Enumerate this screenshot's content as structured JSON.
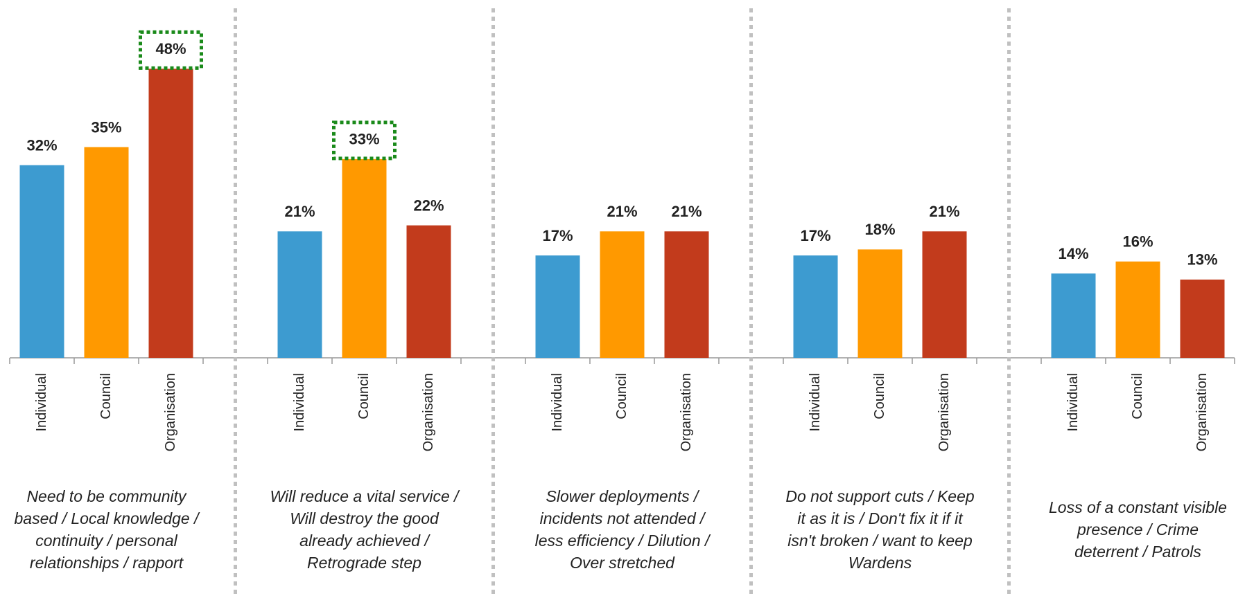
{
  "chart_data": {
    "type": "bar",
    "ylim": [
      0,
      50
    ],
    "colors": [
      "#3d9bd0",
      "#ff9900",
      "#c23b1c"
    ],
    "highlight_color": "#1a8a1a",
    "groups": [
      {
        "label": [
          "Need to be community",
          "based / Local knowledge /",
          "continuity / personal",
          "relationships / rapport"
        ],
        "categories": [
          "Individual",
          "Council",
          "Organisation"
        ],
        "values": [
          32,
          35,
          48
        ],
        "value_labels": [
          "32%",
          "35%",
          "48%"
        ],
        "highlight": 2
      },
      {
        "label": [
          "Will reduce a vital service /",
          "Will destroy the good",
          "already achieved /",
          "Retrograde step"
        ],
        "categories": [
          "Individual",
          "Council",
          "Organisation"
        ],
        "values": [
          21,
          33,
          22
        ],
        "value_labels": [
          "21%",
          "33%",
          "22%"
        ],
        "highlight": 1
      },
      {
        "label": [
          "Slower deployments /",
          "incidents not attended /",
          "less efficiency / Dilution /",
          "Over stretched"
        ],
        "categories": [
          "Individual",
          "Council",
          "Organisation"
        ],
        "values": [
          17,
          21,
          21
        ],
        "value_labels": [
          "17%",
          "21%",
          "21%"
        ]
      },
      {
        "label": [
          "Do not support cuts / Keep",
          "it as it is / Don't fix it if it",
          "isn't broken / want to keep",
          "Wardens"
        ],
        "categories": [
          "Individual",
          "Council",
          "Organisation"
        ],
        "values": [
          17,
          18,
          21
        ],
        "value_labels": [
          "17%",
          "18%",
          "21%"
        ]
      },
      {
        "label": [
          "Loss of a constant visible",
          "presence / Crime",
          "deterrent / Patrols"
        ],
        "categories": [
          "Individual",
          "Council",
          "Organisation"
        ],
        "values": [
          14,
          16,
          13
        ],
        "value_labels": [
          "14%",
          "16%",
          "13%"
        ]
      }
    ]
  }
}
